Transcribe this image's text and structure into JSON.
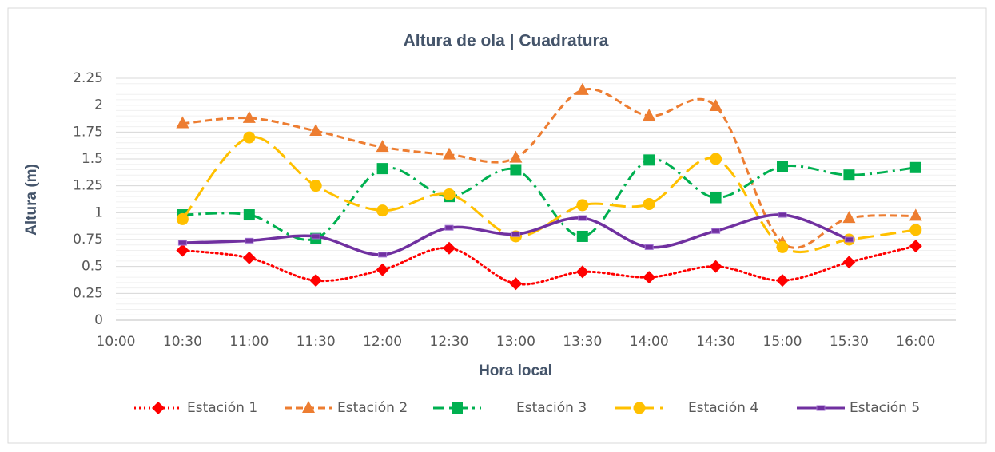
{
  "chart_data": {
    "type": "line",
    "title": "Altura de ola | Cuadratura",
    "x_label": "Hora local",
    "y_label": "Altura (m)",
    "categories": [
      "10:00",
      "10:30",
      "11:00",
      "11:30",
      "12:00",
      "12:30",
      "13:00",
      "13:30",
      "14:00",
      "14:30",
      "15:00",
      "15:30",
      "16:00"
    ],
    "series": [
      {
        "name": "Estación 1",
        "color": "#ff0000",
        "values": [
          null,
          0.65,
          0.58,
          0.37,
          0.47,
          0.67,
          0.34,
          0.45,
          0.4,
          0.5,
          0.37,
          0.54,
          0.69
        ]
      },
      {
        "name": "Estación 2",
        "color": "#ed7d31",
        "values": [
          null,
          1.83,
          1.88,
          1.76,
          1.61,
          1.54,
          1.51,
          2.14,
          1.9,
          1.99,
          0.72,
          0.95,
          0.97
        ]
      },
      {
        "name": "Estación 3",
        "color": "#00b050",
        "values": [
          null,
          0.98,
          0.98,
          0.76,
          1.41,
          1.15,
          1.4,
          0.78,
          1.49,
          1.14,
          1.43,
          1.35,
          1.42
        ]
      },
      {
        "name": "Estación 4",
        "color": "#ffc000",
        "values": [
          null,
          0.94,
          1.7,
          1.25,
          1.02,
          1.17,
          0.78,
          1.07,
          1.08,
          1.5,
          0.68,
          0.75,
          0.84
        ]
      },
      {
        "name": "Estación 5",
        "color": "#7030a0",
        "values": [
          null,
          0.72,
          0.74,
          0.78,
          0.61,
          0.86,
          0.8,
          0.95,
          0.68,
          0.83,
          0.98,
          0.75,
          null
        ]
      }
    ],
    "ylim": [
      0,
      2.25
    ],
    "yticks": [
      0,
      0.25,
      0.5,
      0.75,
      1,
      1.25,
      1.5,
      1.75,
      2,
      2.25
    ],
    "grid": true,
    "legend": "bottom"
  }
}
